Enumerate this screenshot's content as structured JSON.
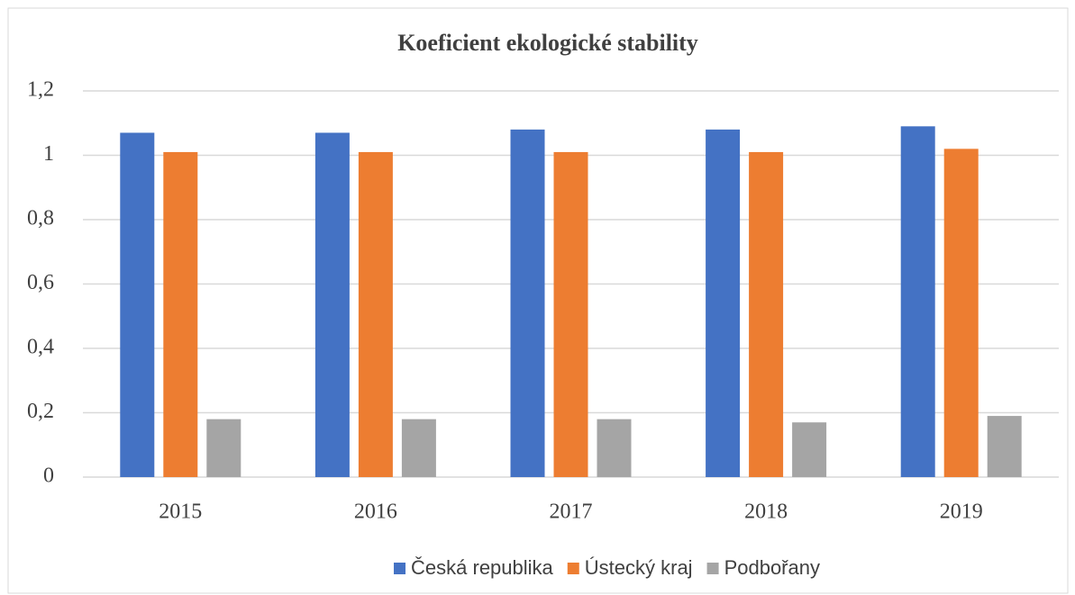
{
  "chart_data": {
    "type": "bar",
    "title": "Koeficient ekologické stability",
    "categories": [
      "2015",
      "2016",
      "2017",
      "2018",
      "2019"
    ],
    "series": [
      {
        "name": "Česká republika",
        "color": "#4472c4",
        "values": [
          1.07,
          1.07,
          1.08,
          1.08,
          1.09
        ]
      },
      {
        "name": "Ústecký kraj",
        "color": "#ed7d31",
        "values": [
          1.01,
          1.01,
          1.01,
          1.01,
          1.02
        ]
      },
      {
        "name": "Podbořany",
        "color": "#a5a5a5",
        "values": [
          0.18,
          0.18,
          0.18,
          0.17,
          0.19
        ]
      }
    ],
    "ylim": [
      0,
      1.2
    ],
    "yticks": [
      0,
      {
        "value": 0.2,
        "label": "0,2"
      },
      {
        "value": 0.4,
        "label": "0,4"
      },
      {
        "value": 0.6,
        "label": "0,6"
      },
      {
        "value": 0.8,
        "label": "0,8"
      },
      1,
      {
        "value": 1.2,
        "label": "1,2"
      }
    ],
    "grid": true,
    "legend": "bottom"
  }
}
